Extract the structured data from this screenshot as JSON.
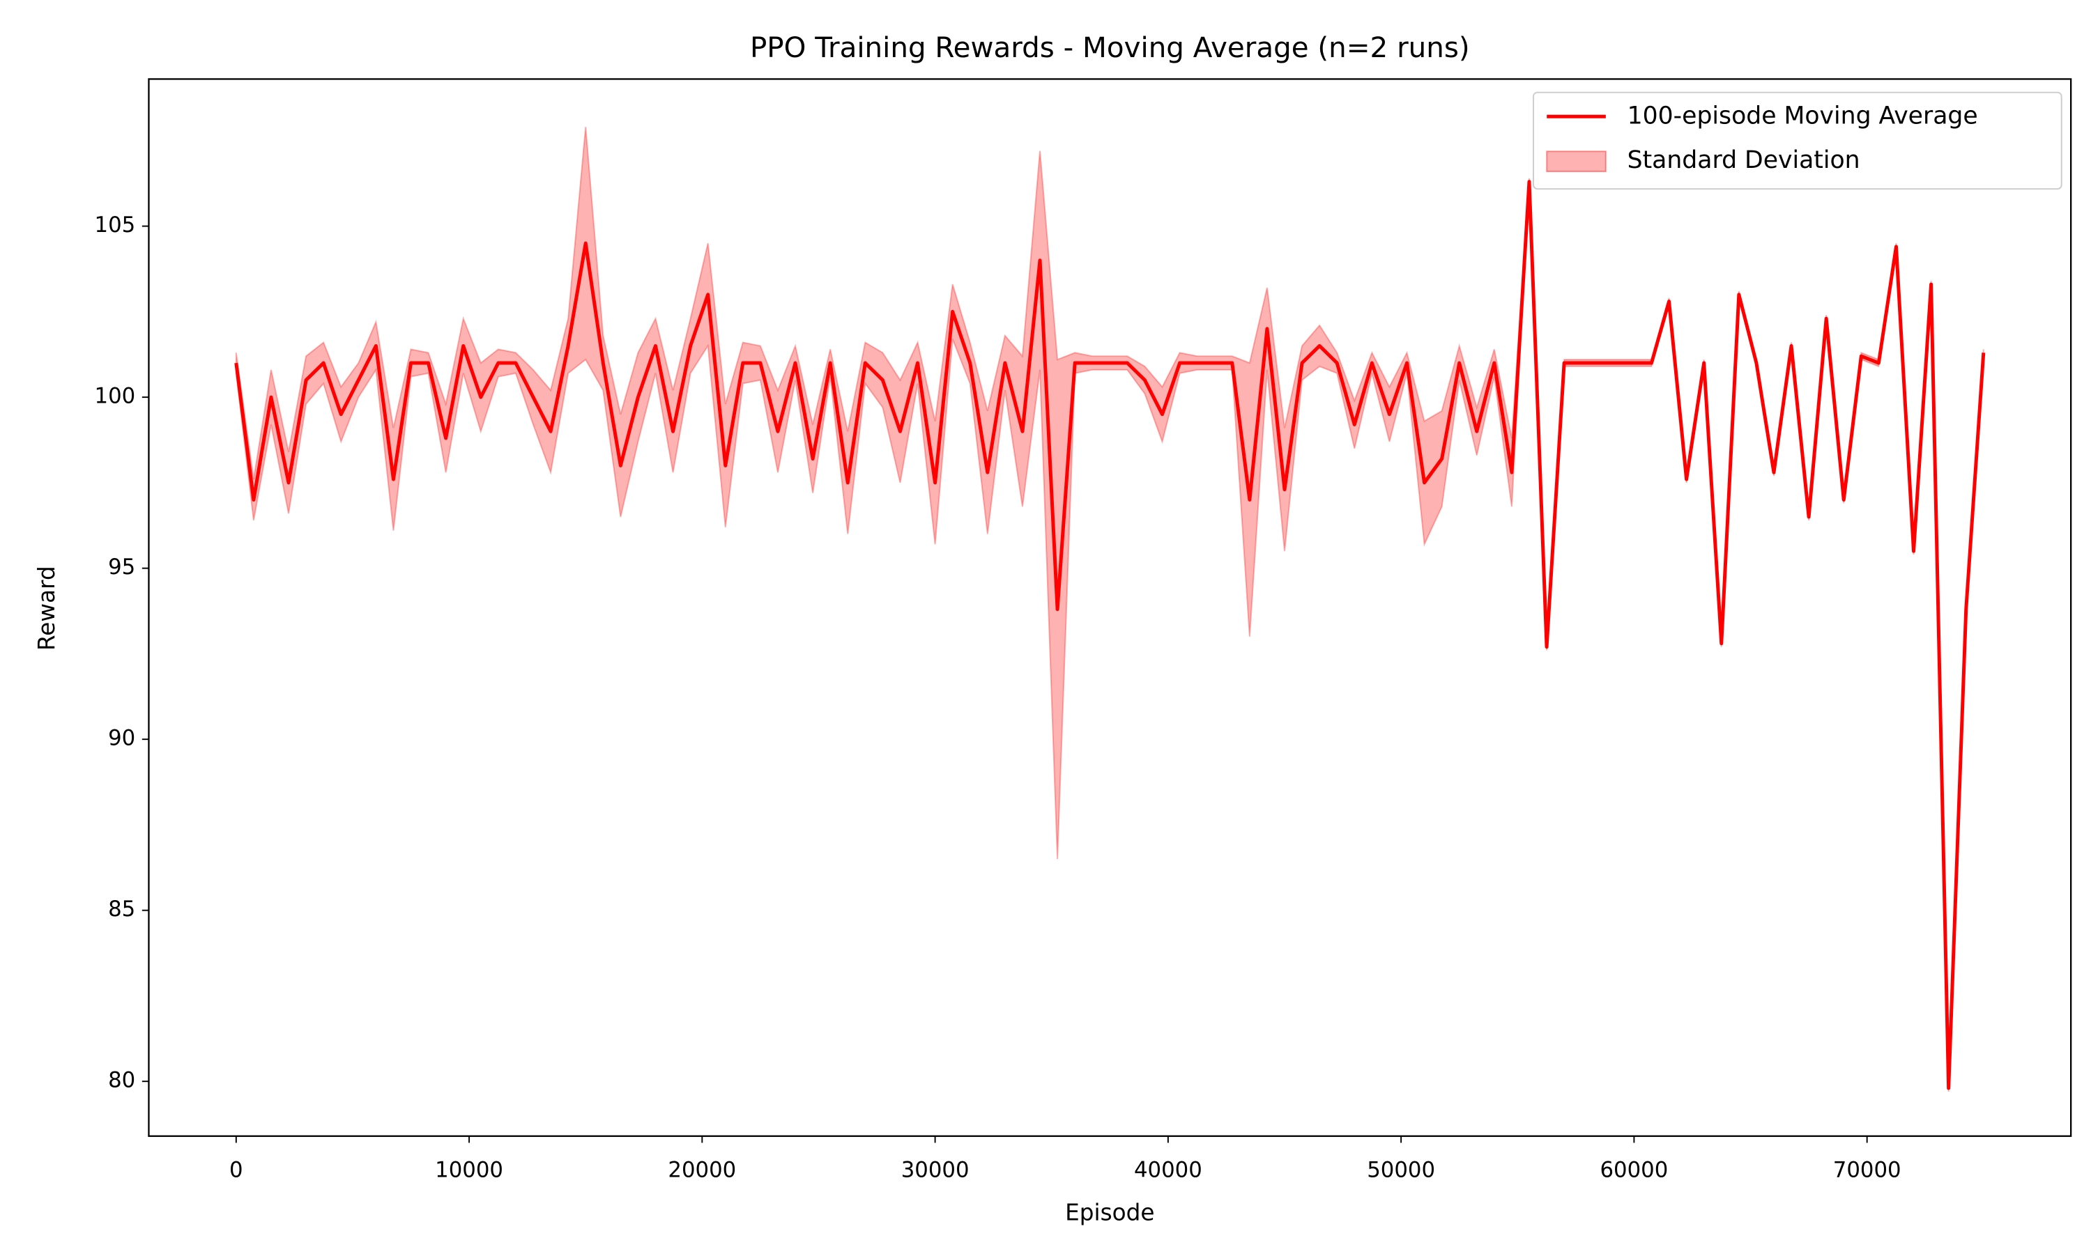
{
  "chart_data": {
    "type": "line",
    "title": "PPO Training Rewards - Moving Average (n=2 runs)",
    "xlabel": "Episode",
    "ylabel": "Reward",
    "x": [
      0,
      750,
      1500,
      2250,
      3000,
      3750,
      4500,
      5250,
      6000,
      6750,
      7500,
      8250,
      9000,
      9750,
      10500,
      11250,
      12000,
      12750,
      13500,
      14250,
      15000,
      15750,
      16500,
      17250,
      18000,
      18750,
      19500,
      20250,
      21000,
      21750,
      22500,
      23250,
      24000,
      24750,
      25500,
      26250,
      27000,
      27750,
      28500,
      29250,
      30000,
      30750,
      31500,
      32250,
      33000,
      33750,
      34500,
      35250,
      36000,
      36750,
      37500,
      38250,
      39000,
      39750,
      40500,
      41250,
      42000,
      42750,
      43500,
      44250,
      45000,
      45750,
      46500,
      47250,
      48000,
      48750,
      49500,
      50250,
      51000,
      51750,
      52500,
      53250,
      54000,
      54750,
      55500,
      56250,
      57000,
      57750,
      58500,
      59250,
      60000,
      60750,
      61500,
      62250,
      63000,
      63750,
      64500,
      65250,
      66000,
      66750,
      67500,
      68250,
      69000,
      69750,
      70500,
      71250,
      72000,
      72750,
      73500,
      74250,
      75000
    ],
    "series": [
      {
        "name": "100-episode Moving Average",
        "color": "#ff0000",
        "values": [
          101,
          97,
          100,
          97.5,
          100.5,
          101,
          99.5,
          100.5,
          101.5,
          97.6,
          101,
          101,
          98.8,
          101.5,
          100,
          101,
          101,
          100,
          99,
          101.5,
          104.5,
          101,
          98,
          100,
          101.5,
          99,
          101.5,
          103,
          98,
          101,
          101,
          99,
          101,
          98.2,
          101,
          97.5,
          101,
          100.5,
          99,
          101,
          97.5,
          102.5,
          101,
          97.8,
          101,
          99,
          104,
          93.8,
          101,
          101,
          101,
          101,
          100.5,
          99.5,
          101,
          101,
          101,
          101,
          97,
          102,
          97.3,
          101,
          101.5,
          101,
          99.2,
          101,
          99.5,
          101,
          97.5,
          98.2,
          101,
          99,
          101,
          97.8,
          106.3,
          92.7,
          101,
          101,
          101,
          101,
          101,
          101,
          102.8,
          97.6,
          101,
          92.8,
          103,
          101,
          97.8,
          101.5,
          96.5,
          102.3,
          97,
          101.2,
          101,
          104.4,
          95.5,
          103.3,
          79.8,
          93.8,
          101.3
        ]
      }
    ],
    "std": {
      "name": "Standard Deviation",
      "color": "#ff0000",
      "values": [
        0.3,
        0.6,
        0.8,
        0.9,
        0.7,
        0.6,
        0.8,
        0.5,
        0.7,
        1.5,
        0.4,
        0.3,
        1.0,
        0.8,
        1.0,
        0.4,
        0.3,
        0.8,
        1.2,
        0.8,
        3.4,
        0.8,
        1.5,
        1.3,
        0.8,
        1.2,
        0.8,
        1.5,
        1.8,
        0.6,
        0.5,
        1.2,
        0.5,
        1.0,
        0.4,
        1.5,
        0.6,
        0.8,
        1.5,
        0.6,
        1.8,
        0.8,
        0.6,
        1.8,
        0.8,
        2.2,
        3.2,
        7.3,
        0.3,
        0.2,
        0.2,
        0.2,
        0.4,
        0.8,
        0.3,
        0.2,
        0.2,
        0.2,
        4.0,
        1.2,
        1.8,
        0.5,
        0.6,
        0.3,
        0.7,
        0.3,
        0.8,
        0.3,
        1.8,
        1.4,
        0.5,
        0.7,
        0.4,
        1.0,
        0.1,
        0.1,
        0.1,
        0.1,
        0.1,
        0.1,
        0.1,
        0.1,
        0.1,
        0.1,
        0.1,
        0.1,
        0.1,
        0.1,
        0.1,
        0.1,
        0.1,
        0.1,
        0.1,
        0.1,
        0.1,
        0.1,
        0.1,
        0.1,
        0.1,
        0.1,
        0.1
      ]
    },
    "xlim": [
      -3750,
      78750
    ],
    "ylim": [
      78.4,
      109.3
    ],
    "xticks": [
      0,
      10000,
      20000,
      30000,
      40000,
      50000,
      60000,
      70000
    ],
    "yticks": [
      80,
      85,
      90,
      95,
      100,
      105
    ],
    "legend": "upper right"
  }
}
